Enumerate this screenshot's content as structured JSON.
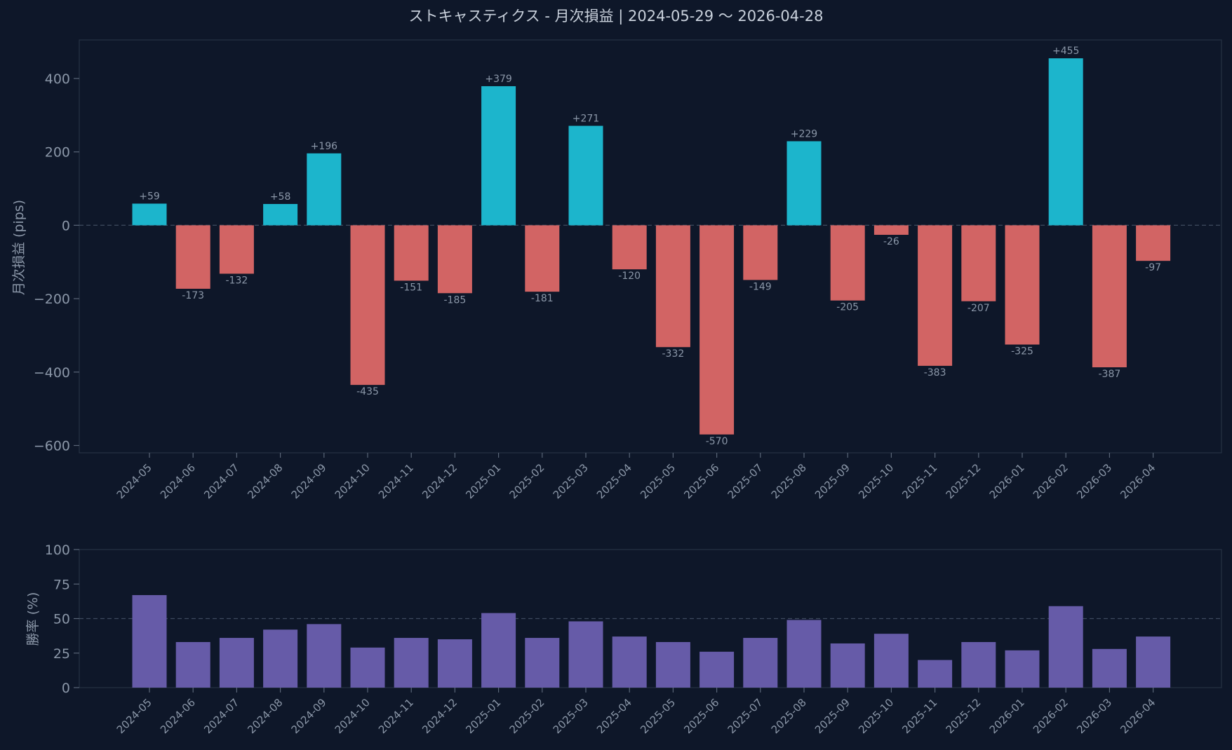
{
  "chart_data": [
    {
      "type": "bar",
      "title": "ストキャスティクス - 月次損益 | 2024-05-29 〜 2026-04-28",
      "xlabel": "",
      "ylabel": "月次損益 (pips)",
      "ylim": [
        -620,
        505
      ],
      "yticks": [
        400,
        200,
        0,
        -200,
        -400,
        -600
      ],
      "ytick_labels": [
        "400",
        "200",
        "0",
        "−200",
        "−400",
        "−600"
      ],
      "reference_line": 0,
      "grid": false,
      "categories": [
        "2024-05",
        "2024-06",
        "2024-07",
        "2024-08",
        "2024-09",
        "2024-10",
        "2024-11",
        "2024-12",
        "2025-01",
        "2025-02",
        "2025-03",
        "2025-04",
        "2025-05",
        "2025-06",
        "2025-07",
        "2025-08",
        "2025-09",
        "2025-10",
        "2025-11",
        "2025-12",
        "2026-01",
        "2026-02",
        "2026-03",
        "2026-04"
      ],
      "values": [
        59,
        -173,
        -132,
        58,
        196,
        -435,
        -151,
        -185,
        379,
        -181,
        271,
        -120,
        -332,
        -570,
        -149,
        229,
        -205,
        -26,
        -383,
        -207,
        -325,
        455,
        -387,
        -97
      ],
      "data_labels": [
        "+59",
        "-173",
        "-132",
        "+58",
        "+196",
        "-435",
        "-151",
        "-185",
        "+379",
        "-181",
        "+271",
        "-120",
        "-332",
        "-570",
        "-149",
        "+229",
        "-205",
        "-26",
        "-383",
        "-207",
        "-325",
        "+455",
        "-387",
        "-97"
      ],
      "colors": {
        "positive": "#1cb5cc",
        "negative": "#d26464"
      }
    },
    {
      "type": "bar",
      "ylabel": "勝率 (%)",
      "ylim": [
        0,
        100
      ],
      "yticks": [
        100,
        75,
        50,
        25,
        0
      ],
      "ytick_labels": [
        "100",
        "75",
        "50",
        "25",
        "0"
      ],
      "reference_line": 50,
      "grid": false,
      "categories": [
        "2024-05",
        "2024-06",
        "2024-07",
        "2024-08",
        "2024-09",
        "2024-10",
        "2024-11",
        "2024-12",
        "2025-01",
        "2025-02",
        "2025-03",
        "2025-04",
        "2025-05",
        "2025-06",
        "2025-07",
        "2025-08",
        "2025-09",
        "2025-10",
        "2025-11",
        "2025-12",
        "2026-01",
        "2026-02",
        "2026-03",
        "2026-04"
      ],
      "values": [
        67,
        33,
        36,
        42,
        46,
        29,
        36,
        35,
        54,
        36,
        48,
        37,
        33,
        26,
        36,
        49,
        32,
        39,
        20,
        33,
        27,
        59,
        28,
        37
      ],
      "color": "#665ba8"
    }
  ],
  "colors": {
    "background": "#0e1729",
    "frame": "#263244",
    "refline": "#3d4a5e"
  }
}
